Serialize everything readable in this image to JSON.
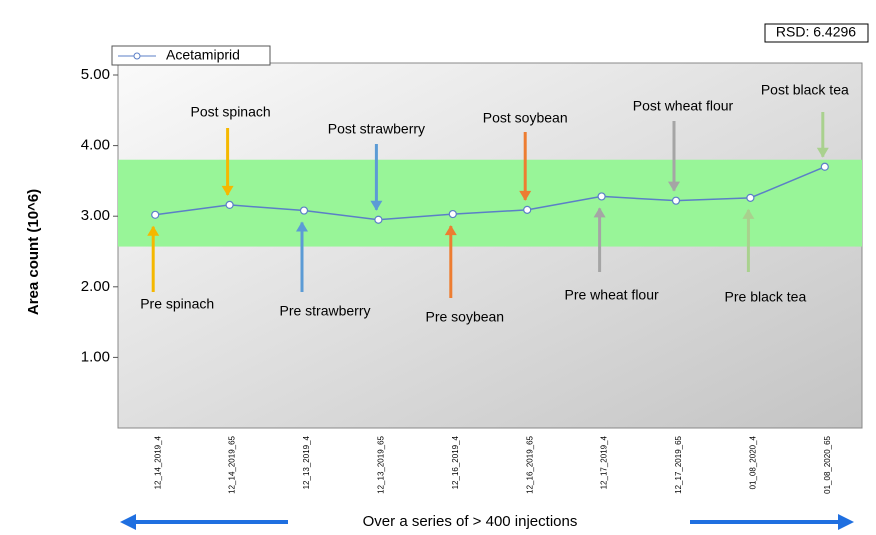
{
  "chart_data": {
    "type": "line",
    "rsd_label": "RSD: 6.4296",
    "ylabel": "Area count (10^6)",
    "footnote": "Over a series of > 400 injections",
    "categories": [
      "12_14_2019_4",
      "12_14_2019_65",
      "12_13_2019_4",
      "12_13_2019_65",
      "12_16_2019_4",
      "12_16_2019_65",
      "12_17_2019_4",
      "12_17_2019_65",
      "01_08_2020_4",
      "01_08_2020_65"
    ],
    "series": [
      {
        "name": "Acetamiprid",
        "color": "#5b7fc7",
        "values": [
          3.02,
          3.16,
          3.08,
          2.95,
          3.03,
          3.09,
          3.28,
          3.22,
          3.26,
          3.7
        ]
      }
    ],
    "band": [
      2.57,
      3.8
    ],
    "band_color": "#98f598",
    "ylim": [
      0,
      5
    ],
    "yticks": [
      {
        "value": 1,
        "label": "1.00"
      },
      {
        "value": 2,
        "label": "2.00"
      },
      {
        "value": 3,
        "label": "3.00"
      },
      {
        "value": 4,
        "label": "4.00"
      },
      {
        "value": 5,
        "label": "5.00"
      }
    ],
    "annotations": [
      {
        "text": "Pre spinach",
        "index": 0,
        "color": "#f5b800",
        "side": "below"
      },
      {
        "text": "Post spinach",
        "index": 1,
        "color": "#f5b800",
        "side": "above"
      },
      {
        "text": "Pre strawberry",
        "index": 2,
        "color": "#5b9bd5",
        "side": "below"
      },
      {
        "text": "Post strawberry",
        "index": 3,
        "color": "#5b9bd5",
        "side": "above"
      },
      {
        "text": "Pre soybean",
        "index": 4,
        "color": "#ed7d31",
        "side": "below"
      },
      {
        "text": "Post soybean",
        "index": 5,
        "color": "#ed7d31",
        "side": "above"
      },
      {
        "text": "Pre wheat flour",
        "index": 6,
        "color": "#a5a5a5",
        "side": "below"
      },
      {
        "text": "Post wheat flour",
        "index": 7,
        "color": "#a5a5a5",
        "side": "above"
      },
      {
        "text": "Pre black tea",
        "index": 8,
        "color": "#a9d18e",
        "side": "below"
      },
      {
        "text": "Post black tea",
        "index": 9,
        "color": "#a9d18e",
        "side": "above"
      }
    ]
  }
}
